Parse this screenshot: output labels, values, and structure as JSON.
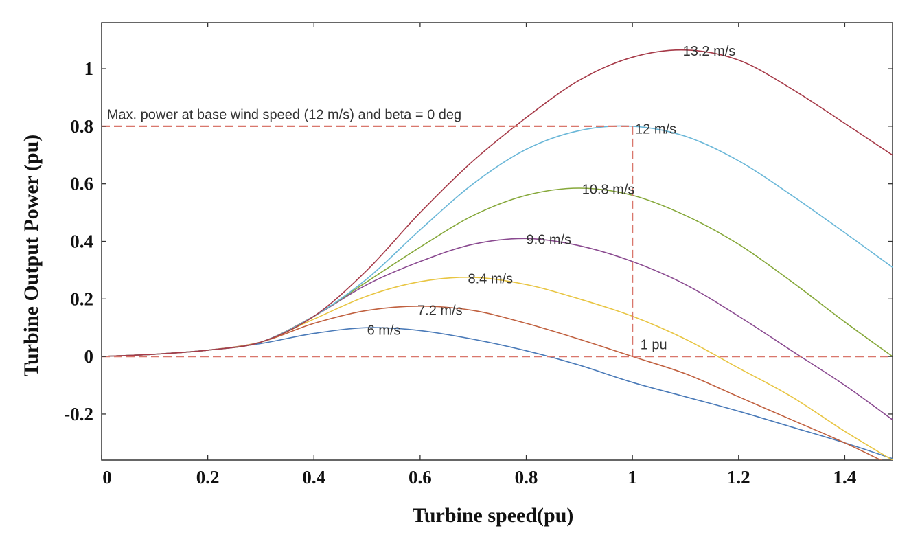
{
  "chart_data": {
    "type": "line",
    "xlabel": "Turbine speed(pu)",
    "ylabel": "Turbine Output Power (pu)",
    "xlim": [
      0,
      1.49
    ],
    "ylim": [
      -0.36,
      1.16
    ],
    "x_ticks": [
      0,
      0.2,
      0.4,
      0.6,
      0.8,
      1,
      1.2,
      1.4
    ],
    "x_tick_labels": [
      "0",
      "0.2",
      "0.4",
      "0.6",
      "0.8",
      "1",
      "1.2",
      "1.4"
    ],
    "y_ticks": [
      -0.2,
      0,
      0.2,
      0.4,
      0.6,
      0.8,
      1
    ],
    "y_tick_labels": [
      "-0.2",
      "0",
      "0.2",
      "0.4",
      "0.6",
      "0.8",
      "1"
    ],
    "grid": false,
    "series": [
      {
        "name": "6 m/s",
        "color": "#4a7ab8",
        "x": [
          0,
          0.1,
          0.2,
          0.3,
          0.4,
          0.5,
          0.6,
          0.7,
          0.8,
          0.9,
          1.0,
          1.1,
          1.2,
          1.3,
          1.4,
          1.49
        ],
        "y": [
          0,
          0.008,
          0.022,
          0.045,
          0.08,
          0.1,
          0.09,
          0.06,
          0.02,
          -0.03,
          -0.09,
          -0.14,
          -0.19,
          -0.245,
          -0.3,
          -0.355
        ]
      },
      {
        "name": "7.2 m/s",
        "color": "#c0603f",
        "x": [
          0,
          0.1,
          0.2,
          0.3,
          0.4,
          0.5,
          0.6,
          0.7,
          0.8,
          0.9,
          1.0,
          1.1,
          1.2,
          1.3,
          1.4,
          1.49
        ],
        "y": [
          0,
          0.008,
          0.022,
          0.05,
          0.115,
          0.16,
          0.175,
          0.16,
          0.115,
          0.06,
          0.0,
          -0.06,
          -0.14,
          -0.22,
          -0.3,
          -0.38
        ]
      },
      {
        "name": "8.4 m/s",
        "color": "#e8c542",
        "x": [
          0,
          0.1,
          0.2,
          0.3,
          0.4,
          0.5,
          0.6,
          0.7,
          0.8,
          0.9,
          1.0,
          1.1,
          1.2,
          1.3,
          1.4,
          1.49
        ],
        "y": [
          0,
          0.008,
          0.022,
          0.05,
          0.13,
          0.21,
          0.26,
          0.275,
          0.25,
          0.2,
          0.14,
          0.06,
          -0.04,
          -0.14,
          -0.26,
          -0.36
        ]
      },
      {
        "name": "9.6 m/s",
        "color": "#8a4a90",
        "x": [
          0,
          0.1,
          0.2,
          0.3,
          0.4,
          0.5,
          0.6,
          0.7,
          0.8,
          0.9,
          1.0,
          1.1,
          1.2,
          1.3,
          1.4,
          1.49
        ],
        "y": [
          0,
          0.008,
          0.022,
          0.05,
          0.14,
          0.25,
          0.33,
          0.39,
          0.41,
          0.385,
          0.33,
          0.25,
          0.14,
          0.02,
          -0.1,
          -0.22
        ]
      },
      {
        "name": "10.8 m/s",
        "color": "#86a83a",
        "x": [
          0,
          0.1,
          0.2,
          0.3,
          0.4,
          0.5,
          0.6,
          0.7,
          0.8,
          0.9,
          1.0,
          1.1,
          1.2,
          1.3,
          1.4,
          1.49
        ],
        "y": [
          0,
          0.008,
          0.022,
          0.05,
          0.14,
          0.26,
          0.38,
          0.49,
          0.56,
          0.585,
          0.56,
          0.49,
          0.39,
          0.26,
          0.12,
          0.0
        ]
      },
      {
        "name": "12 m/s",
        "color": "#6ab7d8",
        "x": [
          0,
          0.1,
          0.2,
          0.3,
          0.4,
          0.5,
          0.6,
          0.7,
          0.8,
          0.9,
          1.0,
          1.1,
          1.2,
          1.3,
          1.4,
          1.49
        ],
        "y": [
          0,
          0.008,
          0.022,
          0.05,
          0.14,
          0.27,
          0.44,
          0.6,
          0.72,
          0.785,
          0.8,
          0.765,
          0.68,
          0.56,
          0.43,
          0.31
        ]
      },
      {
        "name": "13.2 m/s",
        "color": "#a63a48",
        "x": [
          0,
          0.1,
          0.2,
          0.3,
          0.4,
          0.5,
          0.6,
          0.7,
          0.8,
          0.9,
          1.0,
          1.1,
          1.2,
          1.3,
          1.4,
          1.49
        ],
        "y": [
          0,
          0.008,
          0.022,
          0.05,
          0.14,
          0.3,
          0.5,
          0.68,
          0.83,
          0.96,
          1.04,
          1.065,
          1.03,
          0.93,
          0.81,
          0.7
        ]
      }
    ],
    "curve_labels": [
      {
        "text": "6 m/s",
        "x": 0.5,
        "y": 0.075
      },
      {
        "text": "7.2 m/s",
        "x": 0.595,
        "y": 0.145
      },
      {
        "text": "8.4 m/s",
        "x": 0.69,
        "y": 0.255
      },
      {
        "text": "9.6 m/s",
        "x": 0.8,
        "y": 0.39
      },
      {
        "text": "10.8 m/s",
        "x": 0.905,
        "y": 0.565
      },
      {
        "text": "12 m/s",
        "x": 1.005,
        "y": 0.775
      },
      {
        "text": "13.2 m/s",
        "x": 1.095,
        "y": 1.045
      }
    ],
    "annotations": [
      {
        "text": "Max. power at base wind speed (12 m/s) and beta = 0 deg",
        "x": 0.01,
        "y": 0.825
      },
      {
        "text": "1 pu",
        "x": 1.015,
        "y": 0.025
      }
    ],
    "reference_lines": {
      "color": "#d9776c",
      "max_power_y": 0.8,
      "base_speed_x": 1.0,
      "zero_y": 0
    }
  }
}
